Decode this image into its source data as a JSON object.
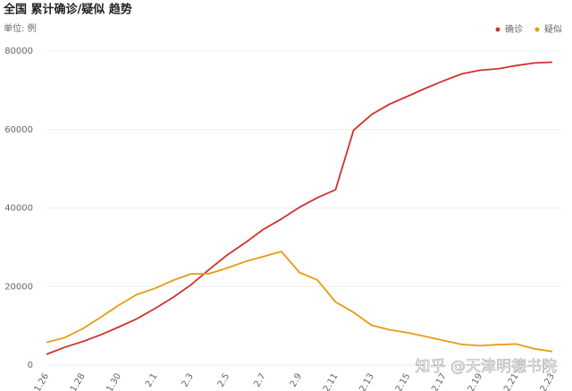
{
  "chart_data": {
    "type": "line",
    "title": "全国 累计确诊/疑似 趋势",
    "subtitle": "单位: 例",
    "categories": [
      "1.26",
      null,
      "1.28",
      null,
      "1.30",
      null,
      "2.1",
      null,
      "2.3",
      null,
      "2.5",
      null,
      "2.7",
      null,
      "2.9",
      null,
      "2.11",
      null,
      "2.13",
      null,
      "2.15",
      null,
      "2.17",
      null,
      "2.19",
      null,
      "2.21",
      null,
      "2.23"
    ],
    "series": [
      {
        "name": "确诊",
        "color": "#d0312d",
        "values": [
          2744,
          4515,
          5974,
          7711,
          9692,
          11791,
          14380,
          17205,
          20438,
          24324,
          28018,
          31161,
          34546,
          37198,
          40171,
          42638,
          44653,
          59804,
          63851,
          66492,
          68500,
          70548,
          72436,
          74185,
          75101,
          75465,
          76288,
          76936,
          77150
        ]
      },
      {
        "name": "疑似",
        "color": "#e89b12",
        "values": [
          5794,
          6973,
          9239,
          12167,
          15238,
          17988,
          19544,
          21558,
          23214,
          23260,
          24702,
          26359,
          27657,
          28942,
          23589,
          21675,
          16067,
          13435,
          10109,
          8969,
          8228,
          7264,
          6242,
          5248,
          4922,
          5206,
          5365,
          4148,
          3434
        ]
      }
    ],
    "ylim": [
      0,
      80000
    ],
    "yticks": [
      0,
      20000,
      40000,
      60000,
      80000
    ],
    "grid": true,
    "legend": "top-right",
    "watermark": "知乎 @天津明德书院"
  }
}
